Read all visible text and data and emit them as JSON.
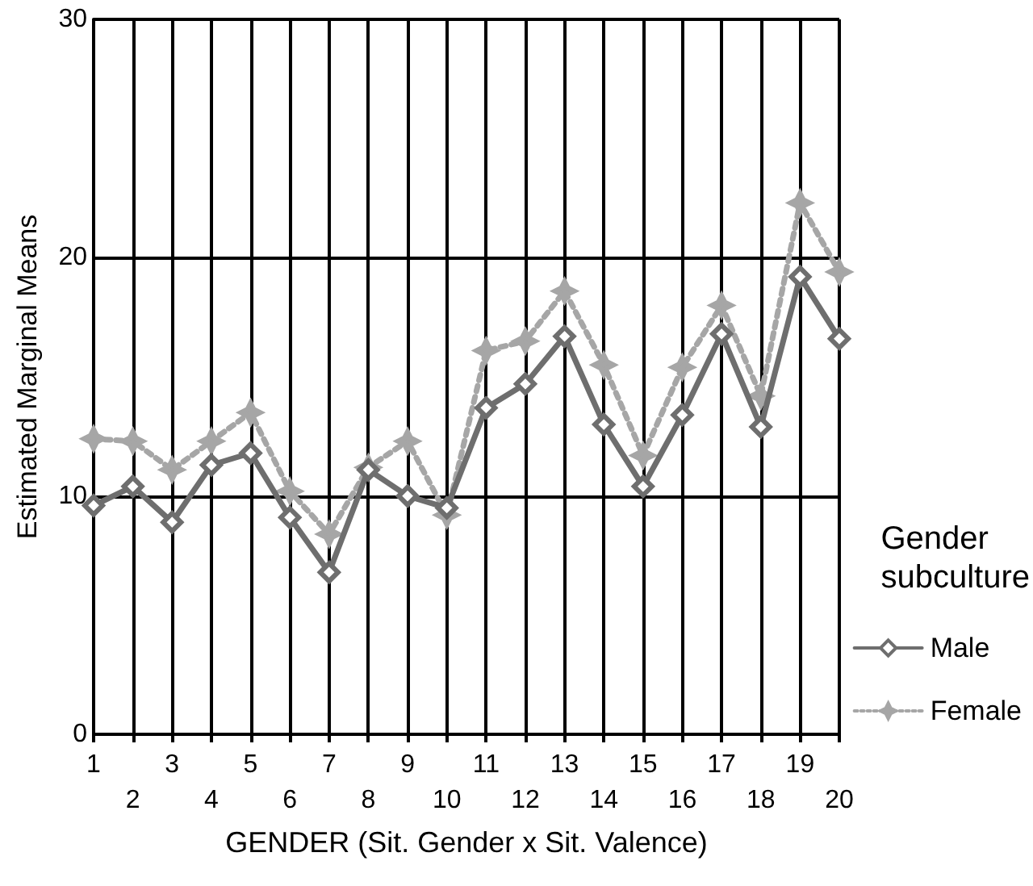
{
  "chart_data": {
    "type": "line",
    "xlabel": "GENDER (Sit. Gender x Sit. Valence)",
    "ylabel": "Estimated Marginal Means",
    "legend_title": "Gender subculture",
    "categories": [
      "1",
      "2",
      "3",
      "4",
      "5",
      "6",
      "7",
      "8",
      "9",
      "10",
      "11",
      "12",
      "13",
      "14",
      "15",
      "16",
      "17",
      "18",
      "19",
      "20"
    ],
    "series": [
      {
        "name": "Male",
        "color": "#6e6e6e",
        "marker": "diamond",
        "line_style": "solid",
        "values": [
          9.6,
          10.4,
          8.9,
          11.3,
          11.8,
          9.1,
          6.8,
          11.1,
          10.0,
          9.5,
          13.7,
          14.7,
          16.7,
          13.0,
          10.4,
          13.4,
          16.8,
          12.9,
          19.2,
          16.6
        ]
      },
      {
        "name": "Female",
        "color": "#a6a6a6",
        "marker": "cross",
        "line_style": "dotted",
        "values": [
          12.4,
          12.3,
          11.1,
          12.3,
          13.5,
          10.2,
          8.4,
          11.2,
          12.3,
          9.2,
          16.1,
          16.5,
          18.6,
          15.5,
          11.7,
          15.4,
          18.0,
          14.2,
          22.3,
          19.4
        ]
      }
    ],
    "ylim": [
      0,
      30
    ],
    "yticks": [
      0,
      10,
      20,
      30
    ],
    "grid": true,
    "legend": "right"
  }
}
